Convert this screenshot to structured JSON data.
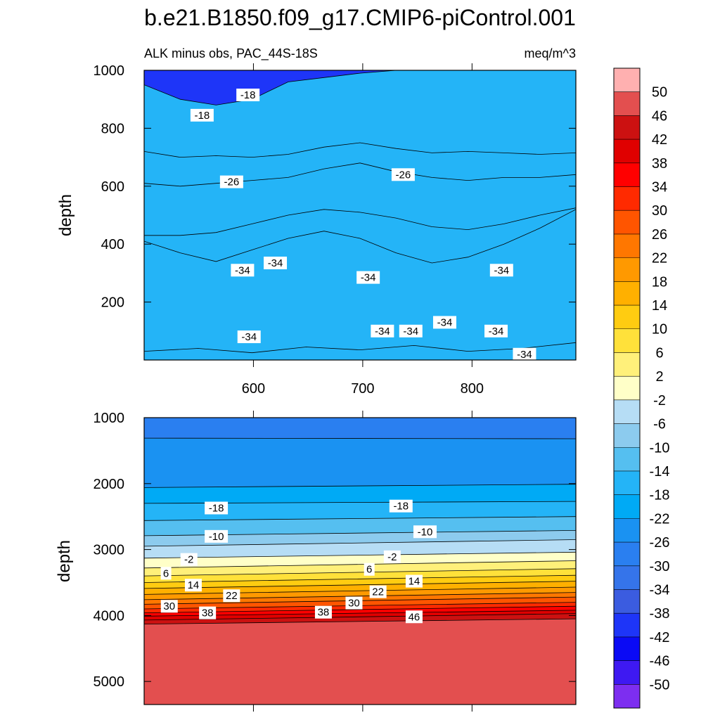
{
  "title": "b.e21.B1850.f09_g17.CMIP6-piControl.001",
  "subtitle_left": "ALK minus obs, PAC_44S-18S",
  "subtitle_right": "meq/m^3",
  "chart_data": [
    {
      "type": "heatmap",
      "panel": "upper",
      "ylabel": "depth",
      "xlabel": "",
      "xlim": [
        500,
        895
      ],
      "ylim": [
        1000,
        0
      ],
      "x_ticks": [
        600,
        700,
        800
      ],
      "y_ticks": [
        200,
        400,
        600,
        800,
        1000
      ],
      "contours": [
        {
          "value": -38,
          "depth": [
            30,
            40,
            25,
            45,
            35,
            50,
            30,
            40,
            60
          ]
        },
        {
          "value": -34,
          "depth": [
            410,
            370,
            340,
            380,
            420,
            445,
            420,
            370,
            335,
            355,
            400,
            455,
            520
          ]
        },
        {
          "value": -30,
          "depth": [
            430,
            430,
            440,
            470,
            500,
            520,
            510,
            490,
            460,
            450,
            470,
            500,
            525
          ]
        },
        {
          "value": -26,
          "depth": [
            610,
            600,
            610,
            620,
            630,
            660,
            680,
            650,
            630,
            620,
            630,
            630,
            640
          ]
        },
        {
          "value": -22,
          "depth": [
            720,
            700,
            705,
            700,
            710,
            735,
            750,
            730,
            715,
            720,
            715,
            710,
            715
          ]
        },
        {
          "value": -18,
          "depth": [
            950,
            900,
            880,
            900,
            960,
            975,
            990,
            1000,
            1000,
            1000,
            1000,
            1000,
            1000
          ]
        }
      ],
      "contour_labels": [
        {
          "text": "-34",
          "x": 596,
          "y": 80
        },
        {
          "text": "-34",
          "x": 718,
          "y": 100
        },
        {
          "text": "-34",
          "x": 744,
          "y": 100
        },
        {
          "text": "-34",
          "x": 775,
          "y": 130
        },
        {
          "text": "-34",
          "x": 822,
          "y": 100
        },
        {
          "text": "-34",
          "x": 848,
          "y": 20
        },
        {
          "text": "-34",
          "x": 590,
          "y": 310
        },
        {
          "text": "-34",
          "x": 620,
          "y": 335
        },
        {
          "text": "-34",
          "x": 705,
          "y": 285
        },
        {
          "text": "-34",
          "x": 827,
          "y": 310
        },
        {
          "text": "-26",
          "x": 580,
          "y": 615
        },
        {
          "text": "-26",
          "x": 737,
          "y": 640
        },
        {
          "text": "-18",
          "x": 553,
          "y": 845
        },
        {
          "text": "-18",
          "x": 595,
          "y": 915
        }
      ]
    },
    {
      "type": "heatmap",
      "panel": "lower",
      "ylabel": "depth",
      "xlabel": "",
      "xlim": [
        500,
        895
      ],
      "ylim": [
        1000,
        5350
      ],
      "x_ticks": [
        600,
        700,
        800
      ],
      "y_ticks": [
        1000,
        2000,
        3000,
        4000,
        5000
      ],
      "contours": [
        {
          "value": -26,
          "depth_left": 1310,
          "depth_right": 1320
        },
        {
          "value": -22,
          "depth_left": 2060,
          "depth_right": 2010
        },
        {
          "value": -18,
          "depth_left": 2300,
          "depth_right": 2270
        },
        {
          "value": -14,
          "depth_left": 2560,
          "depth_right": 2500
        },
        {
          "value": -10,
          "depth_left": 2790,
          "depth_right": 2710
        },
        {
          "value": -6,
          "depth_left": 2950,
          "depth_right": 2850
        },
        {
          "value": -2,
          "depth_left": 3130,
          "depth_right": 3040
        },
        {
          "value": 2,
          "depth_left": 3280,
          "depth_right": 3170
        },
        {
          "value": 6,
          "depth_left": 3400,
          "depth_right": 3290
        },
        {
          "value": 10,
          "depth_left": 3500,
          "depth_right": 3390
        },
        {
          "value": 14,
          "depth_left": 3590,
          "depth_right": 3480
        },
        {
          "value": 18,
          "depth_left": 3680,
          "depth_right": 3570
        },
        {
          "value": 22,
          "depth_left": 3760,
          "depth_right": 3650
        },
        {
          "value": 26,
          "depth_left": 3830,
          "depth_right": 3720
        },
        {
          "value": 30,
          "depth_left": 3900,
          "depth_right": 3800
        },
        {
          "value": 34,
          "depth_left": 3960,
          "depth_right": 3860
        },
        {
          "value": 38,
          "depth_left": 4010,
          "depth_right": 3920
        },
        {
          "value": 42,
          "depth_left": 4070,
          "depth_right": 3970
        },
        {
          "value": 46,
          "depth_left": 4130,
          "depth_right": 4050
        }
      ],
      "contour_labels": [
        {
          "text": "-18",
          "x": 566,
          "y": 2370
        },
        {
          "text": "-18",
          "x": 735,
          "y": 2340
        },
        {
          "text": "-10",
          "x": 566,
          "y": 2800
        },
        {
          "text": "-10",
          "x": 757,
          "y": 2730
        },
        {
          "text": "-2",
          "x": 541,
          "y": 3150
        },
        {
          "text": "-2",
          "x": 727,
          "y": 3110
        },
        {
          "text": "6",
          "x": 520,
          "y": 3360
        },
        {
          "text": "6",
          "x": 706,
          "y": 3300
        },
        {
          "text": "14",
          "x": 545,
          "y": 3540
        },
        {
          "text": "14",
          "x": 747,
          "y": 3480
        },
        {
          "text": "22",
          "x": 580,
          "y": 3700
        },
        {
          "text": "22",
          "x": 714,
          "y": 3640
        },
        {
          "text": "30",
          "x": 523,
          "y": 3860
        },
        {
          "text": "30",
          "x": 692,
          "y": 3810
        },
        {
          "text": "38",
          "x": 558,
          "y": 3960
        },
        {
          "text": "38",
          "x": 664,
          "y": 3950
        },
        {
          "text": "46",
          "x": 747,
          "y": 4020
        }
      ]
    }
  ],
  "colorbar": {
    "labels": [
      "50",
      "46",
      "42",
      "38",
      "34",
      "30",
      "26",
      "22",
      "18",
      "14",
      "10",
      "6",
      "2",
      "-2",
      "-6",
      "-10",
      "-14",
      "-18",
      "-22",
      "-26",
      "-30",
      "-34",
      "-38",
      "-42",
      "-46",
      "-50"
    ],
    "colors": [
      "#ffb0b0",
      "#e34f4f",
      "#cc1111",
      "#e00000",
      "#ff0000",
      "#ff2a00",
      "#ff5500",
      "#ff7700",
      "#ff9900",
      "#ffb000",
      "#ffcc11",
      "#ffe13a",
      "#fff07a",
      "#ffffc8",
      "#b6ddf5",
      "#8ccbee",
      "#55bff0",
      "#24b4f7",
      "#00aaf5",
      "#1a92f2",
      "#2a7ff0",
      "#3574ea",
      "#3b5ce0",
      "#1e35f8",
      "#0a0af5",
      "#3e19f2",
      "#7d2ef0"
    ]
  }
}
